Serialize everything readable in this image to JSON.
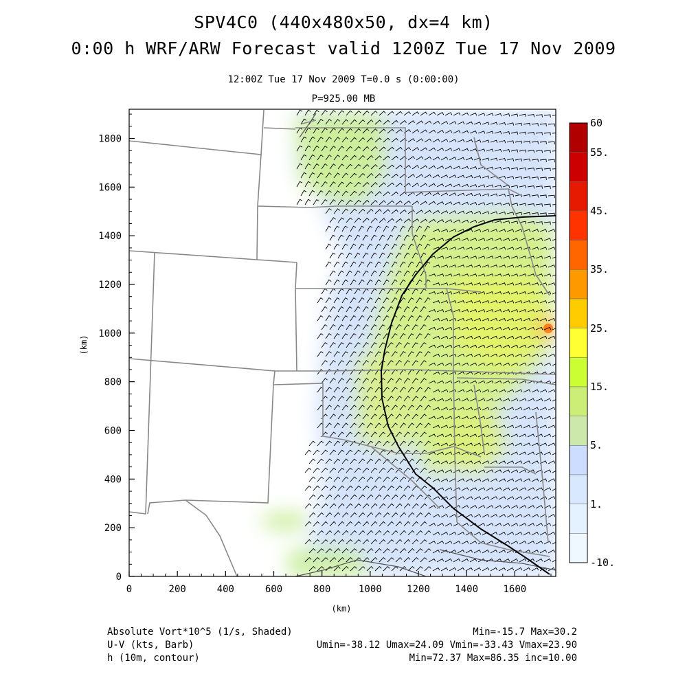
{
  "titles": {
    "line1": "SPV4C0 (440x480x50, dx=4 km)",
    "line2": "0:00 h WRF/ARW Forecast valid 1200Z Tue 17 Nov 2009",
    "time_line": "12:00Z Tue 17 Nov 2009     T=0.0 s (0:00:00)",
    "level_line": "P=925.00 MB"
  },
  "axes": {
    "x_label": "(km)",
    "y_label": "(km)",
    "x_ticks": [
      0,
      200,
      400,
      600,
      800,
      1000,
      1200,
      1400,
      1600
    ],
    "y_ticks": [
      0,
      200,
      400,
      600,
      800,
      1000,
      1200,
      1400,
      1600,
      1800
    ],
    "x_range": [
      0,
      1770
    ],
    "y_range": [
      0,
      1920
    ]
  },
  "colorbar": {
    "labels": [
      "60",
      "55.",
      "45.",
      "35.",
      "25.",
      "15.",
      "5.",
      "1.",
      "-10."
    ],
    "colors": [
      "#b00000",
      "#cc0000",
      "#e61a00",
      "#ff3300",
      "#ff6600",
      "#ff9900",
      "#ffcc00",
      "#ffff33",
      "#ccff33",
      "#ccee77",
      "#cce8aa",
      "#ccddff",
      "#d8e8ff",
      "#e4f2ff",
      "#f0f8ff"
    ]
  },
  "legend": {
    "field1": "Absolute Vort*10^5 (1/s, Shaded)",
    "field1_stats": "Min=-15.7 Max=30.2",
    "field2": "U-V (kts, Barb)",
    "field2_stats": "Umin=-38.12 Umax=24.09 Vmin=-33.43 Vmax=23.90",
    "field3": "h (10m, contour)",
    "field3_stats": "Min=72.37 Max=86.35 inc=10.00"
  }
}
